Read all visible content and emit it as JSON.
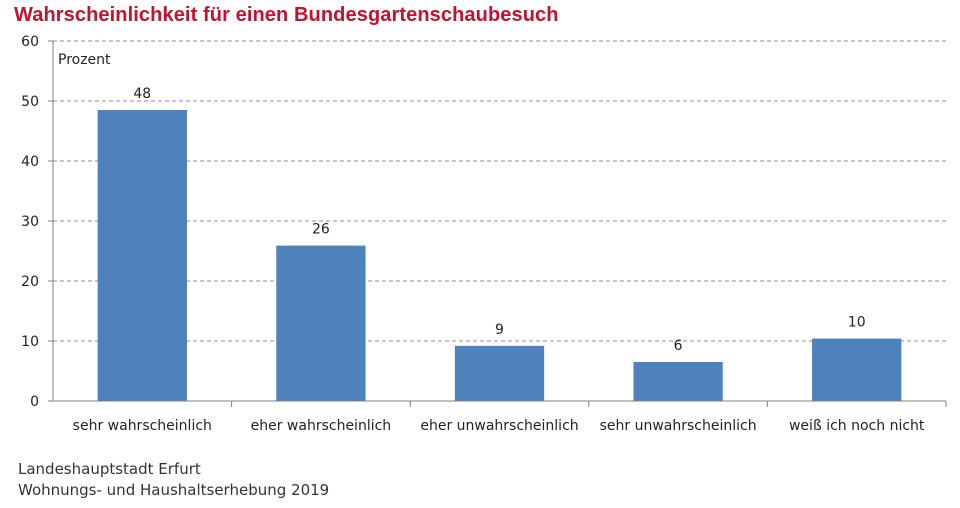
{
  "colors": {
    "title": "#c8102e",
    "bar": "#4f81bd",
    "grid": "#8c8c8c",
    "axis": "#808080",
    "text": "#222222"
  },
  "chart_data": {
    "type": "bar",
    "title": "Wahrscheinlichkeit für einen Bundesgartenschaubesuch",
    "unit_label": "Prozent",
    "xlabel": "",
    "ylabel": "",
    "categories": [
      "sehr wahrscheinlich",
      "eher wahrscheinlich",
      "eher unwahrscheinlich",
      "sehr unwahrscheinlich",
      "weiß ich noch nicht"
    ],
    "values": [
      48.5,
      25.9,
      9.2,
      6.5,
      10.4
    ],
    "value_labels": [
      "48",
      "26",
      "9",
      "6",
      "10"
    ],
    "ylim": [
      0,
      60
    ],
    "yticks": [
      0,
      10,
      20,
      30,
      40,
      50,
      60
    ],
    "grid": true,
    "legend": false
  },
  "source": {
    "line1": "Landeshauptstadt Erfurt",
    "line2": "Wohnungs- und Haushaltserhebung 2019"
  }
}
